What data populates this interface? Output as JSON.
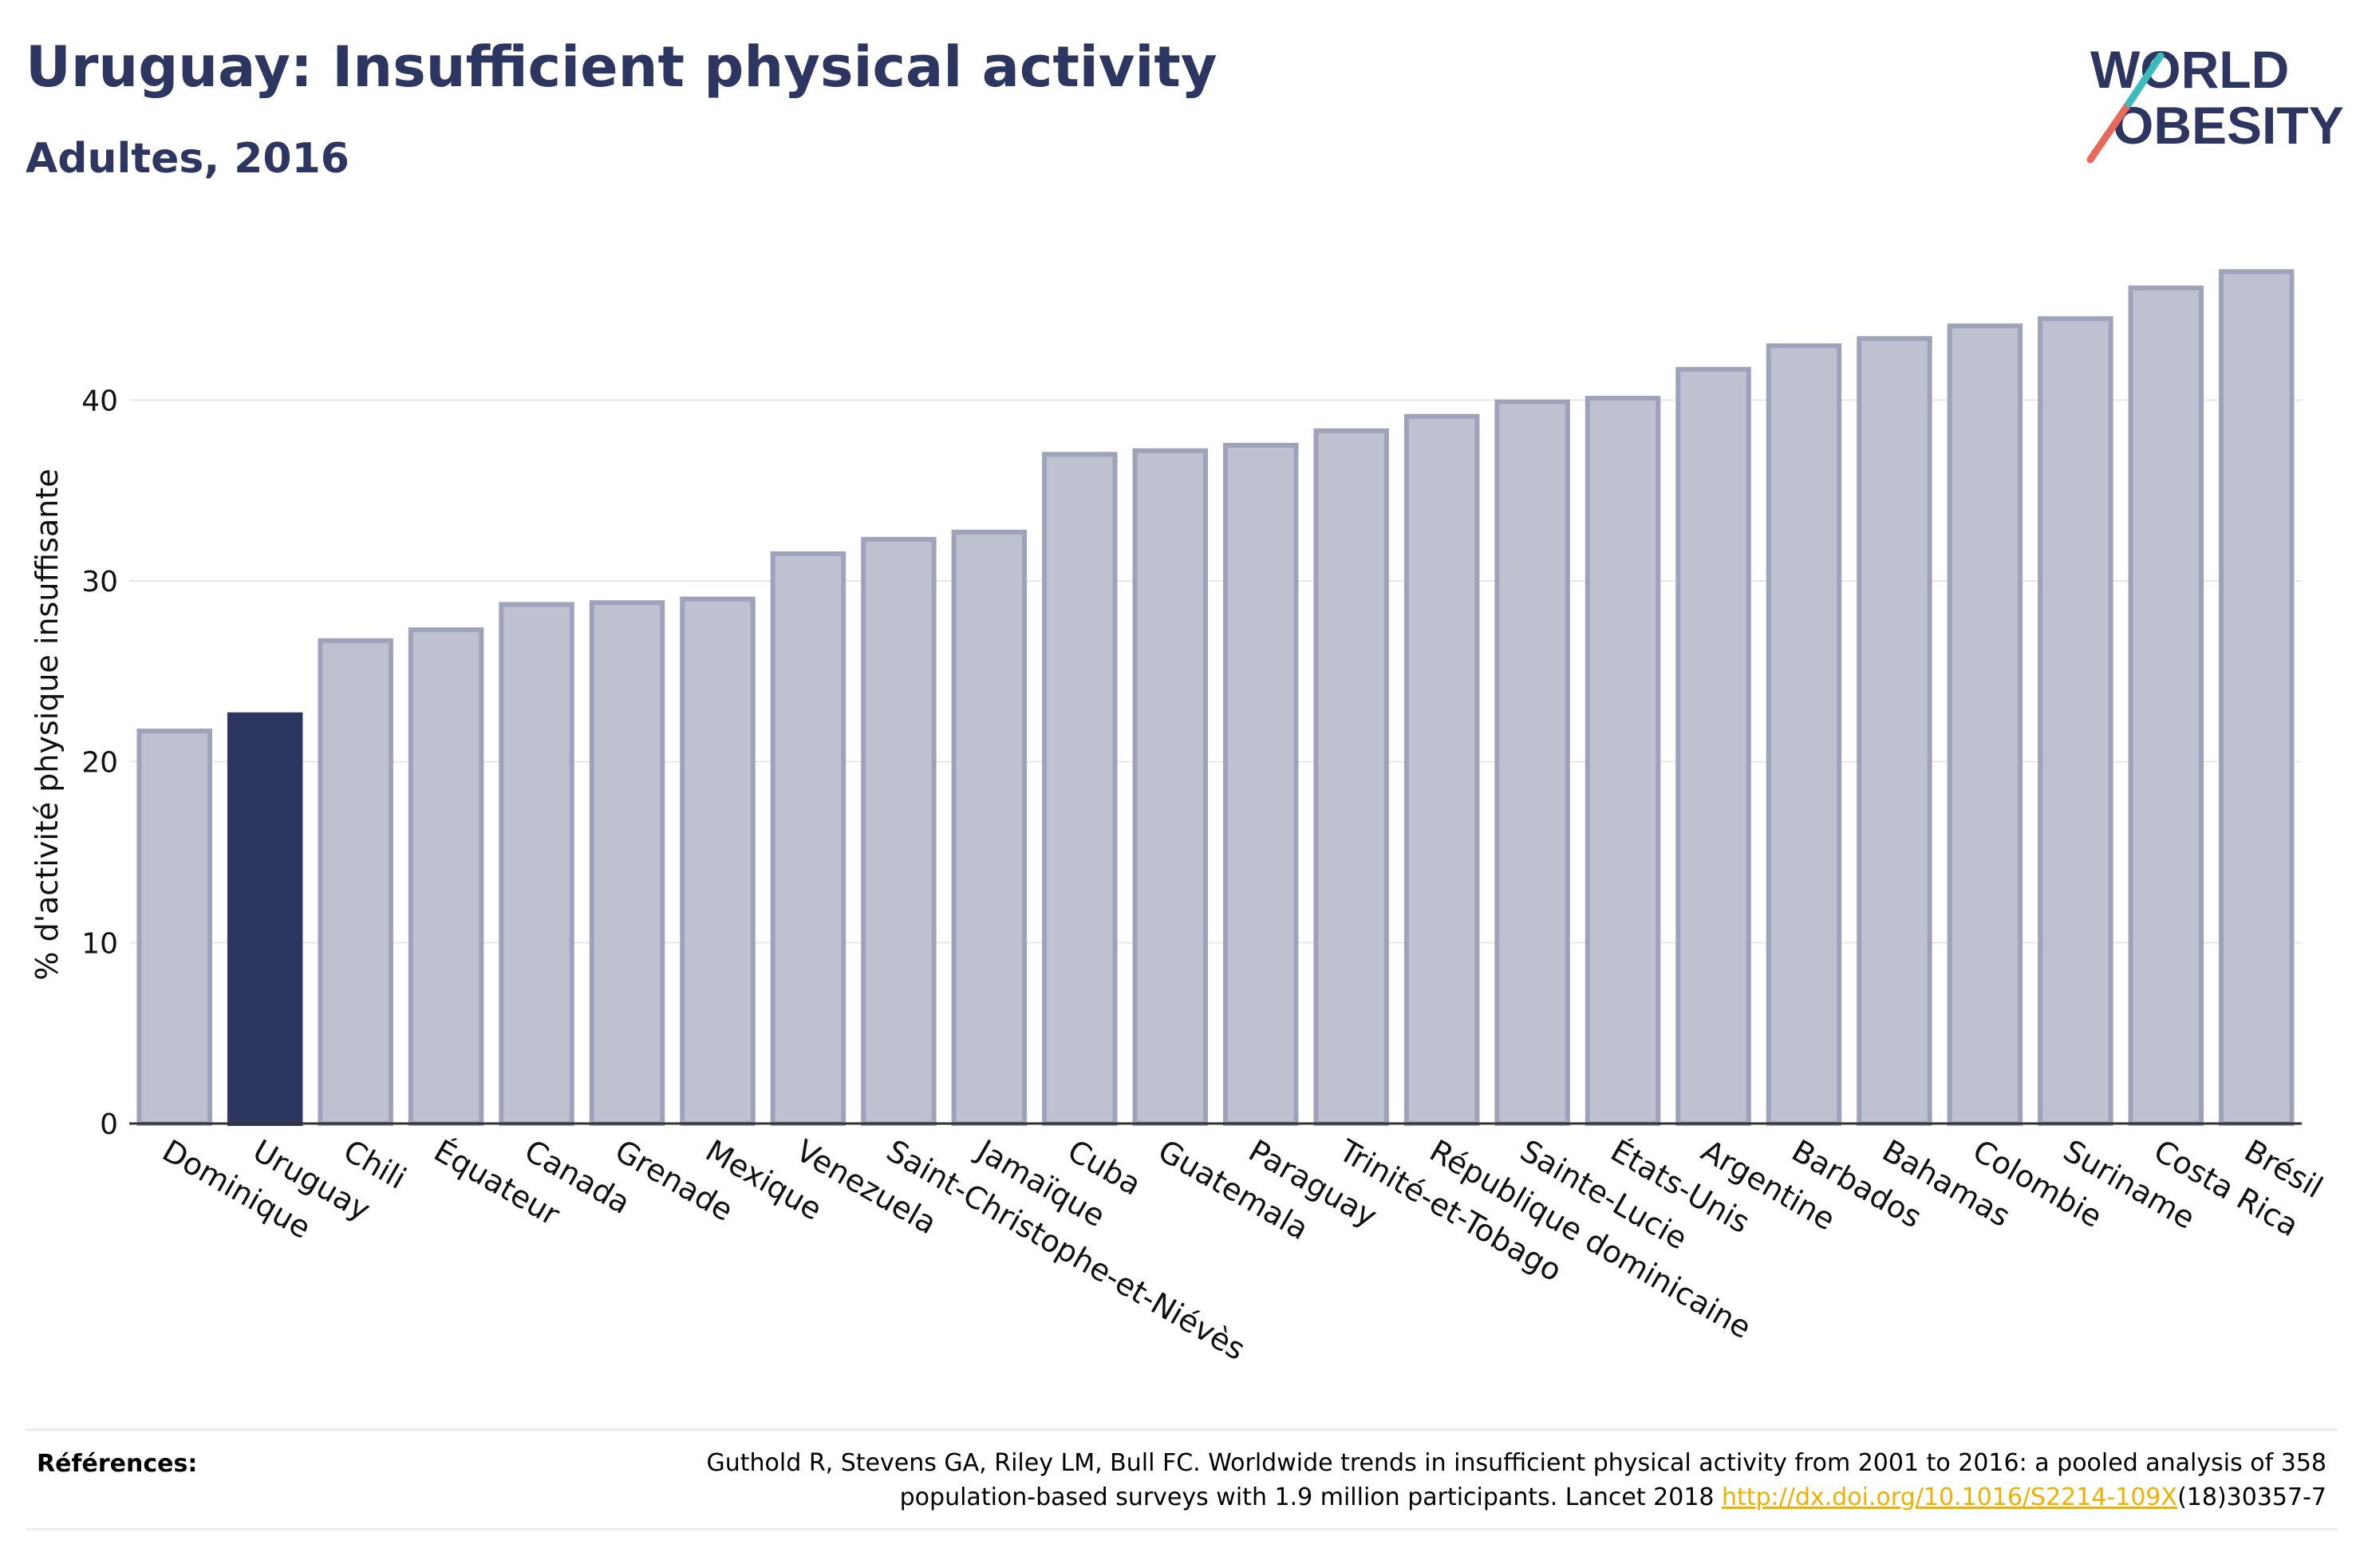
{
  "title": "Uruguay: Insufficient physical activity",
  "subtitle": "Adultes, 2016",
  "logo": {
    "line1": "WORLD",
    "line2": "OBESITY",
    "colors": [
      "#2d3660",
      "#e8685a",
      "#3bbcbc"
    ]
  },
  "references": {
    "label": "Références:",
    "text_before": "Guthold R, Stevens GA, Riley LM, Bull FC. Worldwide trends in insufficient physical activity from 2001 to 2016: a pooled analysis of 358 population-based surveys with 1.9 million participants. Lancet 2018 ",
    "link": "http://dx.doi.org/10.1016/S2214-109X",
    "text_after": "(18)30357-7"
  },
  "colors": {
    "highlight": "#2d3660",
    "bar_fill": "#bec1d0",
    "bar_border": "#9ea3b9",
    "grid": "#e8e8ec",
    "axis": "#333333",
    "link": "#f0b000"
  },
  "chart_data": {
    "type": "bar",
    "title": "Uruguay: Insufficient physical activity",
    "subtitle": "Adultes, 2016",
    "xlabel": "",
    "ylabel": "% d'activité physique insuffisante",
    "ylim": [
      0,
      48
    ],
    "yticks": [
      0,
      10,
      20,
      30,
      40
    ],
    "grid": true,
    "highlight": "Uruguay",
    "categories": [
      "Dominique",
      "Uruguay",
      "Chili",
      "Équateur",
      "Canada",
      "Grenade",
      "Mexique",
      "Venezuela",
      "Saint-Christophe-et-Niévès",
      "Jamaïque",
      "Cuba",
      "Guatemala",
      "Paraguay",
      "Trinité-et-Tobago",
      "République dominicaine",
      "Sainte-Lucie",
      "États-Unis",
      "Argentine",
      "Barbados",
      "Bahamas",
      "Colombie",
      "Suriname",
      "Costa Rica",
      "Brésil"
    ],
    "values": [
      21.7,
      22.6,
      26.7,
      27.3,
      28.7,
      28.8,
      29.0,
      31.5,
      32.3,
      32.7,
      37.0,
      37.2,
      37.5,
      38.3,
      39.1,
      39.9,
      40.1,
      41.7,
      43.0,
      43.4,
      44.1,
      44.5,
      46.2,
      47.1
    ]
  }
}
